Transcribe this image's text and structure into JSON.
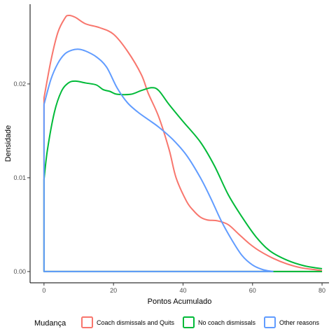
{
  "chart_data": {
    "type": "line",
    "xlabel": "Pontos Acumulado",
    "ylabel": "Densidade",
    "xlim": [
      -4,
      82
    ],
    "ylim": [
      -0.0012,
      0.0285
    ],
    "x_ticks": [
      0,
      20,
      40,
      60,
      80
    ],
    "y_ticks": [
      0.0,
      0.01,
      0.02
    ],
    "y_tick_labels": [
      "0.00",
      "0.01",
      "0.02"
    ],
    "grid": false,
    "legend": {
      "title": "Mudança",
      "position": "bottom"
    },
    "series": [
      {
        "name": "Coach dismissals and Quits",
        "color": "#F8766D",
        "points": [
          [
            0,
            0.0185
          ],
          [
            2,
            0.0225
          ],
          [
            4,
            0.0255
          ],
          [
            6,
            0.027
          ],
          [
            7,
            0.0273
          ],
          [
            9,
            0.0271
          ],
          [
            12,
            0.0264
          ],
          [
            16,
            0.026
          ],
          [
            20,
            0.0253
          ],
          [
            24,
            0.0235
          ],
          [
            28,
            0.021
          ],
          [
            30,
            0.019
          ],
          [
            33,
            0.0165
          ],
          [
            36,
            0.013
          ],
          [
            38,
            0.01
          ],
          [
            41,
            0.0075
          ],
          [
            43,
            0.0065
          ],
          [
            45,
            0.0058
          ],
          [
            47,
            0.0055
          ],
          [
            50,
            0.0054
          ],
          [
            53,
            0.005
          ],
          [
            56,
            0.004
          ],
          [
            59,
            0.003
          ],
          [
            62,
            0.0022
          ],
          [
            66,
            0.0014
          ],
          [
            70,
            0.0008
          ],
          [
            74,
            0.0004
          ],
          [
            78,
            0.0002
          ],
          [
            80,
            0.0001
          ]
        ]
      },
      {
        "name": "No coach dismissals",
        "color": "#00BA38",
        "points": [
          [
            0,
            0.0098
          ],
          [
            1,
            0.013
          ],
          [
            3,
            0.017
          ],
          [
            5,
            0.0192
          ],
          [
            7,
            0.0201
          ],
          [
            9,
            0.0203
          ],
          [
            12,
            0.0201
          ],
          [
            15,
            0.0199
          ],
          [
            17,
            0.0194
          ],
          [
            19,
            0.0192
          ],
          [
            21,
            0.0189
          ],
          [
            25,
            0.0189
          ],
          [
            28,
            0.0193
          ],
          [
            31,
            0.0196
          ],
          [
            33,
            0.0193
          ],
          [
            36,
            0.0178
          ],
          [
            40,
            0.016
          ],
          [
            45,
            0.0138
          ],
          [
            49,
            0.0113
          ],
          [
            53,
            0.0082
          ],
          [
            57,
            0.0058
          ],
          [
            61,
            0.0037
          ],
          [
            65,
            0.0022
          ],
          [
            70,
            0.0012
          ],
          [
            75,
            0.0006
          ],
          [
            80,
            0.0003
          ]
        ]
      },
      {
        "name": "Other reasons",
        "color": "#619CFF",
        "points": [
          [
            0,
            0.0178
          ],
          [
            2,
            0.0205
          ],
          [
            4,
            0.0222
          ],
          [
            6,
            0.0232
          ],
          [
            8,
            0.0236
          ],
          [
            10,
            0.0237
          ],
          [
            12,
            0.0235
          ],
          [
            15,
            0.0229
          ],
          [
            18,
            0.0218
          ],
          [
            21,
            0.0196
          ],
          [
            24,
            0.018
          ],
          [
            27,
            0.017
          ],
          [
            30,
            0.0162
          ],
          [
            33,
            0.0154
          ],
          [
            37,
            0.0141
          ],
          [
            41,
            0.0124
          ],
          [
            45,
            0.01
          ],
          [
            48,
            0.0078
          ],
          [
            51,
            0.0054
          ],
          [
            54,
            0.0034
          ],
          [
            57,
            0.0017
          ],
          [
            60,
            0.0007
          ],
          [
            63,
            0.0002
          ],
          [
            66,
            0.0
          ]
        ]
      }
    ]
  }
}
